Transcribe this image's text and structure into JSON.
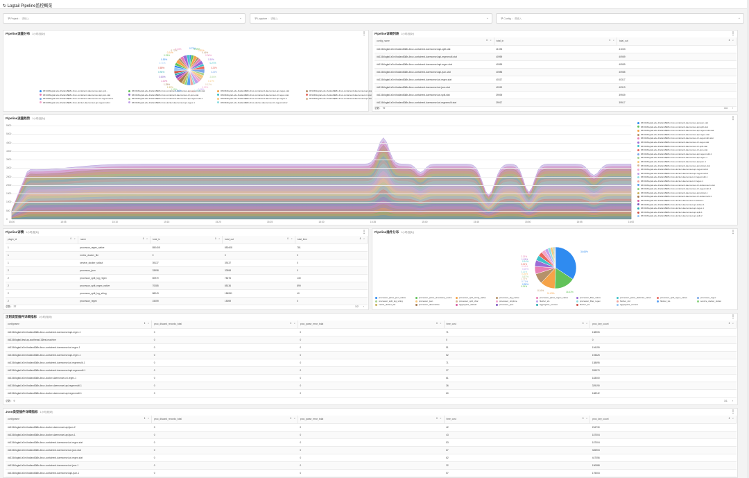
{
  "app_title": "Logtail Pipeline监控概览",
  "filters": [
    {
      "label": "Project :",
      "placeholder": "请输入"
    },
    {
      "label": "Logstore :",
      "placeholder": "请输入"
    },
    {
      "label": "Config :",
      "placeholder": "请输入"
    }
  ],
  "pie1": {
    "title": "Pipeline流量分布",
    "time": "1小时(相对)",
    "labels": [
      "0.73%",
      "0.59%",
      "0.51%",
      "0.46%",
      "0.36%",
      "0.30%",
      "0.27%",
      "0.25%",
      "0.23%",
      "2.84%",
      "0.17%",
      "0.12%",
      "0.09%",
      "0.08%",
      "0.07%",
      "1.15%",
      "1.84%",
      "1.55%",
      "1.35%",
      "1.25%",
      "1.00%",
      "0.80%",
      "0.94%",
      "0.85%",
      "0.71%",
      "0.55%",
      "0.33%",
      "0.24%",
      "0.72%",
      "0.43%"
    ],
    "legend": [
      "##134#logtail-e2e-thailand$k8s-linux-containerd-daemonset-api-sysl...",
      "##134#logtail-e2e-thailand$k8s-linux-containerd-daemonset-api-regexmulti-stat",
      "##134#logtail-e2e-thailand$k8s-linux-containerd-daemonset-api-regex-stat",
      "##134#logtail-e2e-thailand$k8s-linux-containerd-daemonset-api-json-stat",
      "##134#logtail-e2e-thailand$k8s-linux-containerd-daemonset-api-json-stat",
      "##134#logtail-e2e-thailand$k8s-linux-containerd-daemonset-cri-json-stat",
      "##134#logtail-e2e-thailand$k8s-linux-containerd-daemonset-cri-regex-stat",
      "##134#logtail-e2e-thailand$k8s-linux-containerd-daemonset-cri-stat",
      "##134#logtail-e2e-thailand$k8s-linux-containerd-daemonset-cri-regexmulti-s",
      "##134#logtail-e2e-thailand$k8s-linux-containerd-daemonset-api-regexmulti-1",
      "##134#logtail-e2e-thailand$k8s-linux-containerd-daemonset-api-regex-1",
      "##134#logtail-e2e-thailand$k8s-linux-containerd-daemonset-api-stat",
      "##134#logtail-e2e-thailand$k8s-linux-docker-daemonset-api-regexmulti-1",
      "##134#logtail-e2e-thailand$k8s-linux-docker-daemonset-api-regex-1",
      "##134#logtail-e2e-thailand$k8s-linux-docker-daemonset-cri-regexmulti-2"
    ]
  },
  "config_table": {
    "title": "Pipeline详细列表",
    "time": "1小时(相对)",
    "columns": [
      "config_name",
      "total_in",
      "total_out"
    ],
    "rows": [
      [
        "##134#logtail-e2e-thailand$k8s-linux-containerd-daemonset-api-split-stat",
        "41033",
        "41033"
      ],
      [
        "##134#logtail-e2e-thailand$k8s-linux-containerd-daemonset-api-regexmulti-stat",
        "40959",
        "40959"
      ],
      [
        "##134#logtail-e2e-thailand$k8s-linux-containerd-daemonset-api-regex-stat",
        "40959",
        "40959"
      ],
      [
        "##134#logtail-e2e-thailand$k8s-linux-containerd-daemonset-api-json-stat",
        "40985",
        "40985"
      ],
      [
        "##134#logtail-e2e-thailand$k8s-linux-containerd-daemonset-cri-regex-stat",
        "40317",
        "40317"
      ],
      [
        "##134#logtail-e2e-thailand$k8s-linux-containerd-daemonset-cri-json-stat",
        "40313",
        "40313"
      ],
      [
        "##134#logtail-e2e-thailand$k8s-linux-containerd-daemonset-cri-split-stat",
        "39939",
        "39939"
      ],
      [
        "##134#logtail-e2e-thailand$k8s-linux-containerd-daemonset-cri-regexmulti-stat",
        "39917",
        "39917"
      ]
    ],
    "footer_total": "总数： 79",
    "pager": "1/4"
  },
  "trend_chart": {
    "title": "Pipeline流量趋势",
    "time": "1小时(相对)",
    "yticks": [
      "5500",
      "5000",
      "4500",
      "4000",
      "3500",
      "3000",
      "2500",
      "2000",
      "1500",
      "1000",
      "500",
      "0"
    ],
    "xticks": [
      "15:00",
      "15:05",
      "15:10",
      "15:15",
      "15:20",
      "15:25",
      "15:30",
      "15:35",
      "15:40",
      "15:45",
      "15:50",
      "15:55",
      "16:00"
    ],
    "legend": [
      "##134#logtail-e2e-thailand$k8s-linux-containerd-daemonset-api-json-stat",
      "##134#logtail-e2e-thailand$k8s-linux-containerd-daemonset-api-split-stat",
      "##134#logtail-e2e-thailand$k8s-linux-containerd-daemonset-api-regexmulti-stat",
      "##134#logtail-e2e-thailand$k8s-linux-containerd-daemonset-api-regex-stat",
      "##134#logtail-e2e-thailand$k8s-linux-containerd-daemonset-cri-regexmulti-stat",
      "##134#logtail-e2e-thailand$k8s-linux-containerd-daemonset-cri-regex-stat",
      "##134#logtail-e2e-thailand$k8s-linux-containerd-daemonset-cri-split-stat",
      "##134#logtail-e2e-thailand$k8s-linux-containerd-daemonset-cri-json-stat",
      "##134#logtail-e2e-thailand$k8s-linux-containerd-daemonset-api-regexmulti-1",
      "##134#logtail-e2e-thailand$k8s-linux-containerd-daemonset-api-regex-1",
      "##134#logtail-e2e-thailand$k8s-linux-containerd-daemonset-api-json-1",
      "##134#logtail-e2e-thailand$k8s-linux-containerd-daemonset-api-stdout-stat",
      "##134#logtail-e2e-thailand$k8s-linux-docker-daemonset-api-regexmulti-1",
      "##134#logtail-e2e-thailand$k8s-linux-docker-daemonset-api-regexmulti-1",
      "##134#logtail-e2e-thailand$k8s-linux-docker-daemonset-cri-regexmulti-1",
      "##134#logtail-e2e-thailand$k8s-linux-docker-daemonset-cri-regex-1",
      "##134#logtail-e2e-thailand$k8s-linux-containerd-daemonset-cri-stdoutone-b-stat",
      "##134#logtail-e2e-thailand$k8s-linux-containerd-daemonset-cri-regexmulti-1",
      "##134#logtail-e2e-thailand$k8s-linux-containerd-daemonset-api-stdout-1",
      "##134#logtail-e2e-thailand$k8s-linux-containerd-daemonset-cri-stdoutmulti-1",
      "##134#logtail-e2e-thailand$k8s-linux-docker-daemonset-cri-stdout-1",
      "##134#logtail-e2e-thailand$k8s-linux-docker-daemonset-api-stdout-1",
      "##134#logtail-e2e-thailand$k8s-linux-docker-daemonset-api-regex-1",
      "##134#logtail-e2e-thailand$k8s-linux-docker-daemonset-api-split-1",
      "##134#logtail-e2e-thailand$k8s-linux-docker-daemonset-api-split-2"
    ]
  },
  "plugin_table": {
    "title": "Pipeline详情",
    "time": "1小时(相对)",
    "columns": [
      "plugin_id",
      "name",
      "total_in",
      "total_out",
      "total_time"
    ],
    "rows": [
      [
        "1",
        "processor_regex_native",
        "850408",
        "850408",
        "781"
      ],
      [
        "1",
        "metric_docker_file",
        "0",
        "0",
        "0"
      ],
      [
        "1",
        "service_docker_stdout",
        "39137",
        "39137",
        "0"
      ],
      [
        "2",
        "processor_json",
        "33998",
        "33998",
        "0"
      ],
      [
        "2",
        "processor_split_log_regex",
        "60970",
        "78276",
        "130"
      ],
      [
        "2",
        "processor_split_regex_native",
        "70085",
        "85136",
        "899"
      ],
      [
        "2",
        "processor_split_log_string",
        "88043",
        "186951",
        "40"
      ],
      [
        "2",
        "processor_regex",
        "15059",
        "15059",
        "0"
      ]
    ],
    "footer_total": "总数： 37",
    "pager": "1/2"
  },
  "pie2": {
    "title": "Pipeline插件分布",
    "time": "1小时(相对)",
    "labels": {
      "big": "34.65%",
      "green": "16.43%",
      "orange": "11.63%",
      "brown": "8.16%"
    },
    "small_labels": [
      "2.13%",
      "1.03%",
      "0.14%",
      "0.24%",
      "0.34%",
      "0.26%",
      "0.14%",
      "0.26%",
      "0.57%",
      "1.75%",
      "0.71%",
      "0.28%",
      "0.24%"
    ],
    "legend": [
      "processor_parse_json_native",
      "processor_parse_timestamp_native",
      "processor_split_string_native",
      "processor_tag_native",
      "processor_parse_regex_native",
      "processor_filter_native",
      "processor_parse_delimiter_native",
      "processor_split_regex_native",
      "processor_regex",
      "processor_split_log_string",
      "processor_json",
      "processor_split_char",
      "processor_strptime",
      "flusher_sls",
      "processor_filter_regex",
      "flusher_std",
      "flusher_sls",
      "service_docker_stdout",
      "metric_docker_file",
      "processor_desensitize",
      "aggregator_default",
      "processor_json",
      "aggregator_context",
      "flusher_sls",
      "aggregator_context"
    ]
  },
  "regex_table": {
    "title": "正则类型插件详细指标",
    "time": "1小时(相对)",
    "columns": [
      "configname",
      "proc_discard_records_total",
      "proc_parse_error_total",
      "time_cost",
      "proc_key_count"
    ],
    "rows": [
      [
        "##134#logtail-e2e-thailand$k8s-linux-containerd-daemonset-api-regex-1",
        "0",
        "0",
        "71",
        "138905"
      ],
      [
        "##134#logtail-test-ap-southeast-1$test-machine",
        "0",
        "0",
        "0",
        "0"
      ],
      [
        "##134#logtail-e2e-thailand$k8s-linux-containerd-daemonset-cri-regex-1",
        "0",
        "0",
        "51",
        "194159"
      ],
      [
        "##134#logtail-e2e-thailand$k8s-linux-containerd-daemonset-api-regex-1",
        "0",
        "0",
        "52",
        "193625"
      ],
      [
        "##134#logtail-e2e-thailand$k8s-linux-containerd-daemonset-cri-regexmulti-1",
        "0",
        "0",
        "71",
        "138695"
      ],
      [
        "##134#logtail-e2e-thailand$k8s-linux-containerd-daemonset-api-regexmulti-1",
        "0",
        "0",
        "27",
        "209070"
      ],
      [
        "##134#logtail-e2e-thailand$k8s-linux-docker-daemonset-cri-regex-1",
        "0",
        "0",
        "61",
        "183000"
      ],
      [
        "##134#logtail-e2e-thailand$k8s-linux-docker-daemonset-api-regexmulti-1",
        "0",
        "0",
        "36",
        "329190"
      ],
      [
        "##134#logtail-e2e-thailand$k8s-linux-docker-daemonset-api-regexmulti-1",
        "0",
        "0",
        "60",
        "168242"
      ]
    ],
    "footer_total": "总数： 9",
    "pager": "1/1"
  },
  "json_table": {
    "title": "Json类型插件详细指标",
    "time": "1小时(相对)",
    "columns": [
      "configname",
      "proc_discard_records_total",
      "proc_parse_error_total",
      "time_cost",
      "proc_key_count"
    ],
    "rows": [
      [
        "##134#logtail-e2e-thailand$k8s-linux-docker-daemonset-api-json-2",
        "0",
        "0",
        "42",
        "234730"
      ],
      [
        "##134#logtail-e2e-thailand$k8s-linux-docker-daemonset-api-json-1",
        "0",
        "0",
        "43",
        "187004"
      ],
      [
        "##134#logtail-e2e-thailand$k8s-linux-containerd-daemonset-cri-regex-stat",
        "0",
        "0",
        "53",
        "187004"
      ],
      [
        "##134#logtail-e2e-thailand$k8s-linux-containerd-daemonset-cri-json-stat",
        "0",
        "0",
        "67",
        "326903"
      ],
      [
        "##134#logtail-e2e-thailand$k8s-linux-containerd-daemonset-cri-regex-stat",
        "0",
        "0",
        "62",
        "447056"
      ],
      [
        "##134#logtail-e2e-thailand$k8s-linux-containerd-daemonset-cri-json-1",
        "0",
        "0",
        "32",
        "190988"
      ],
      [
        "##134#logtail-e2e-thailand$k8s-linux-containerd-daemonset-api-json-1",
        "0",
        "0",
        "57",
        "175003"
      ]
    ]
  },
  "colors": {
    "blue": "#2f8bf0",
    "green": "#62c25a",
    "orange": "#f5a348",
    "brown": "#b5916a",
    "pink": "#e87fb4",
    "purple": "#9b6bd6",
    "teal": "#3fc1c9",
    "red": "#e8685d"
  }
}
